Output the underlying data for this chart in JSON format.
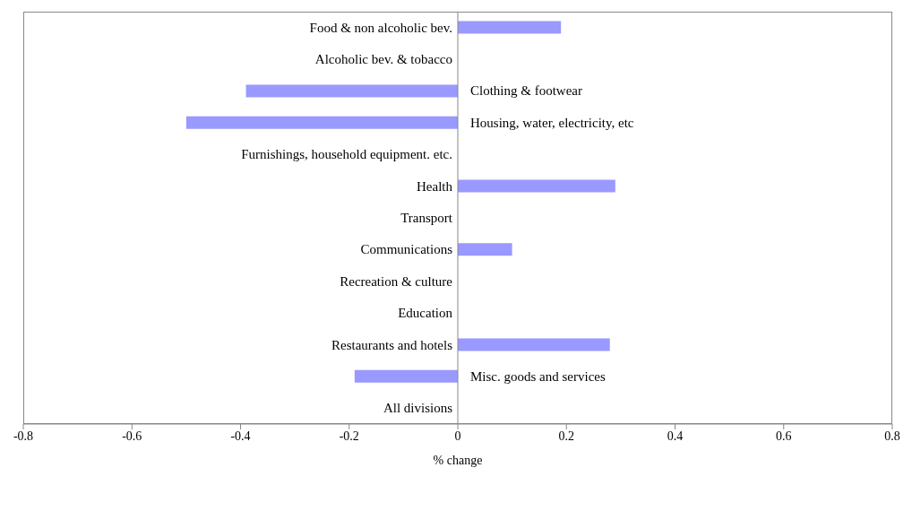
{
  "chart_data": {
    "type": "bar",
    "orientation": "horizontal",
    "xlabel": "% change",
    "categories": [
      "Food & non alcoholic bev.",
      "Alcoholic bev. & tobacco",
      "Clothing & footwear",
      "Housing, water, electricity, etc",
      "Furnishings, household equipment. etc.",
      "Health",
      "Transport",
      "Communications",
      "Recreation  & culture",
      "Education",
      "Restaurants and hotels",
      "Misc. goods and services",
      "All divisions"
    ],
    "values": [
      0.19,
      0,
      -0.39,
      -0.5,
      0,
      0.29,
      0,
      0.1,
      0,
      0,
      0.28,
      -0.19,
      0
    ],
    "color": "#9999ff",
    "xlim": [
      -0.8,
      0.8
    ],
    "xticks": [
      -0.8,
      -0.6,
      -0.4,
      -0.2,
      0.0,
      0.2,
      0.4,
      0.6,
      0.8
    ]
  }
}
